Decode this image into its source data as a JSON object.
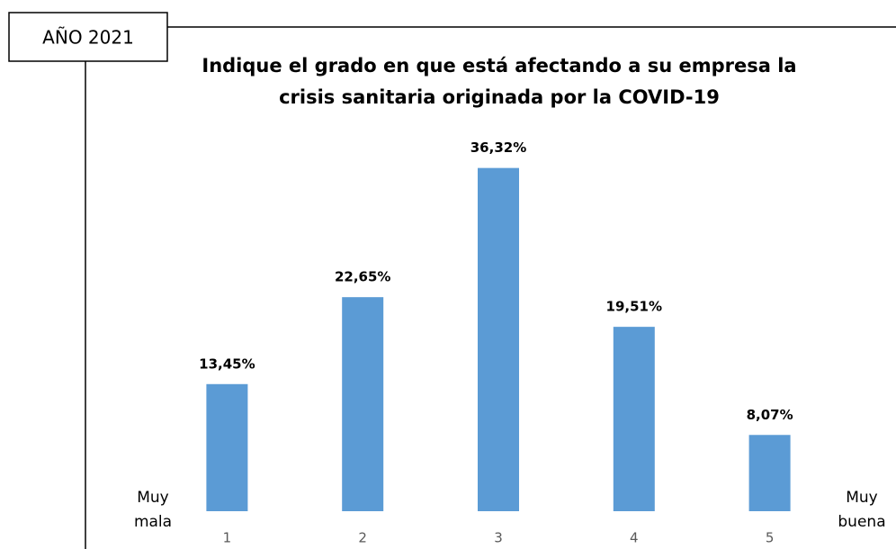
{
  "tag": "AÑO 2021",
  "chart_data": {
    "type": "bar",
    "title": [
      "Indique el grado en que está afectando a su empresa la",
      "crisis sanitaria originada por la COVID-19"
    ],
    "categories": [
      "1",
      "2",
      "3",
      "4",
      "5"
    ],
    "values": [
      13.45,
      22.65,
      36.32,
      19.51,
      8.07
    ],
    "value_labels": [
      "13,45%",
      "22,65%",
      "36,32%",
      "19,51%",
      "8,07%"
    ],
    "color": "#5b9bd5",
    "ylim": [
      0,
      40
    ],
    "annotations": [
      [
        "Muy",
        "mala"
      ],
      [
        "Muy",
        "buena"
      ]
    ]
  }
}
